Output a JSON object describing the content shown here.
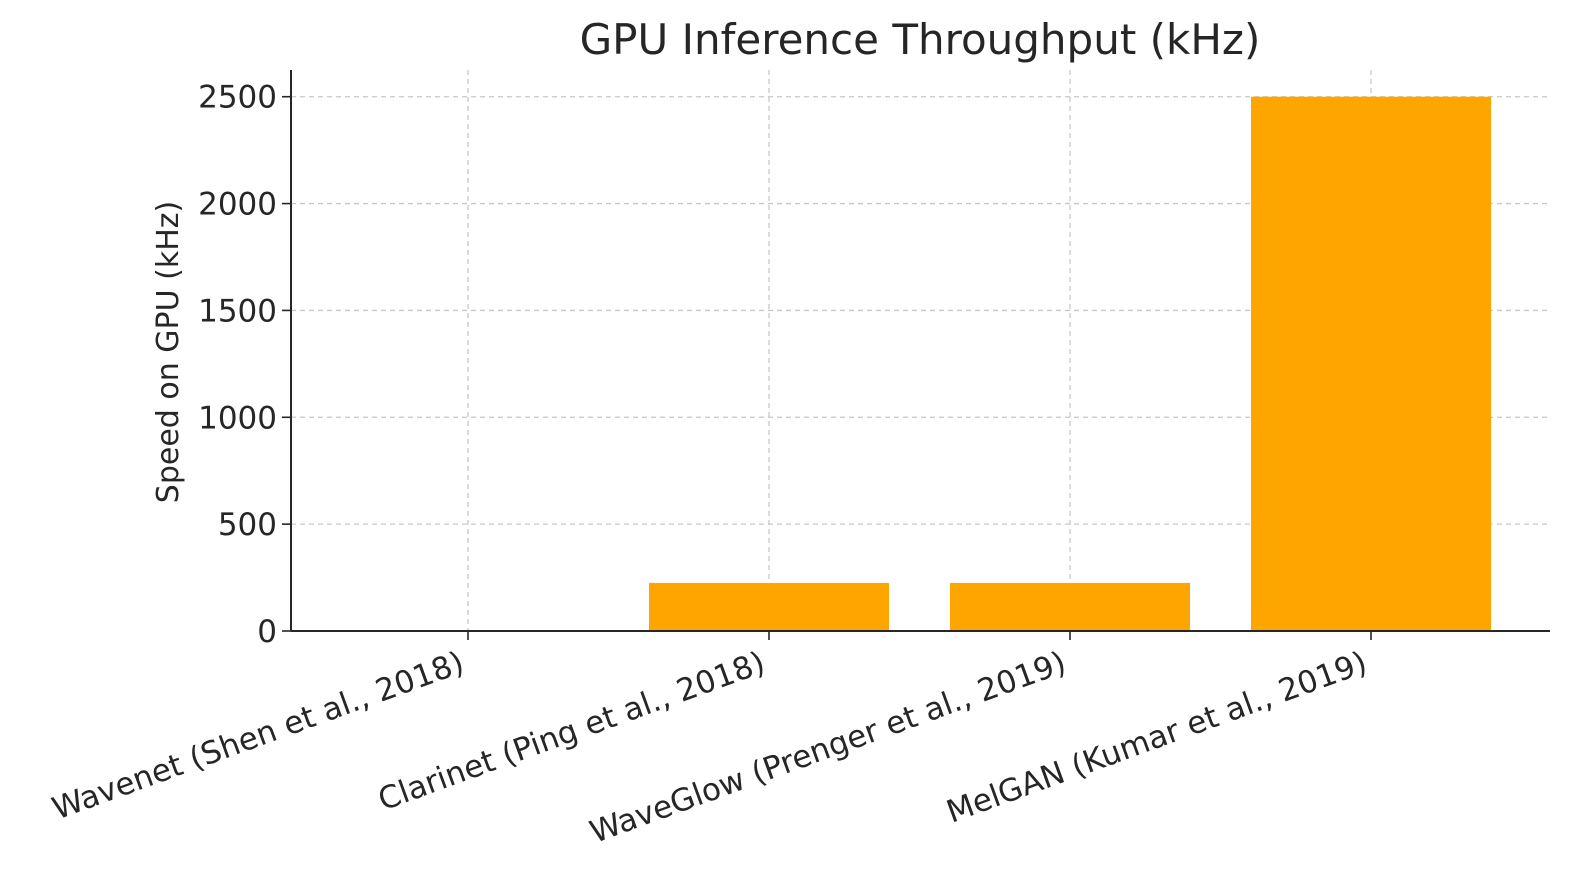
{
  "chart_data": {
    "type": "bar",
    "title": "GPU Inference Throughput (kHz)",
    "xlabel": "",
    "ylabel": "Speed on GPU (kHz)",
    "categories": [
      "Wavenet (Shen et al., 2018)",
      "Clarinet (Ping et al., 2018)",
      "WaveGlow (Prenger et al., 2019)",
      "MelGAN (Kumar et al., 2019)"
    ],
    "values": [
      0.0,
      225,
      225,
      2500
    ],
    "ylim": [
      0,
      2625
    ],
    "yticks": [
      0,
      500,
      1000,
      1500,
      2000,
      2500
    ],
    "bar_color": "#ffa500",
    "grid": true,
    "grid_style": "dashed",
    "x_tick_rotation": 20
  }
}
